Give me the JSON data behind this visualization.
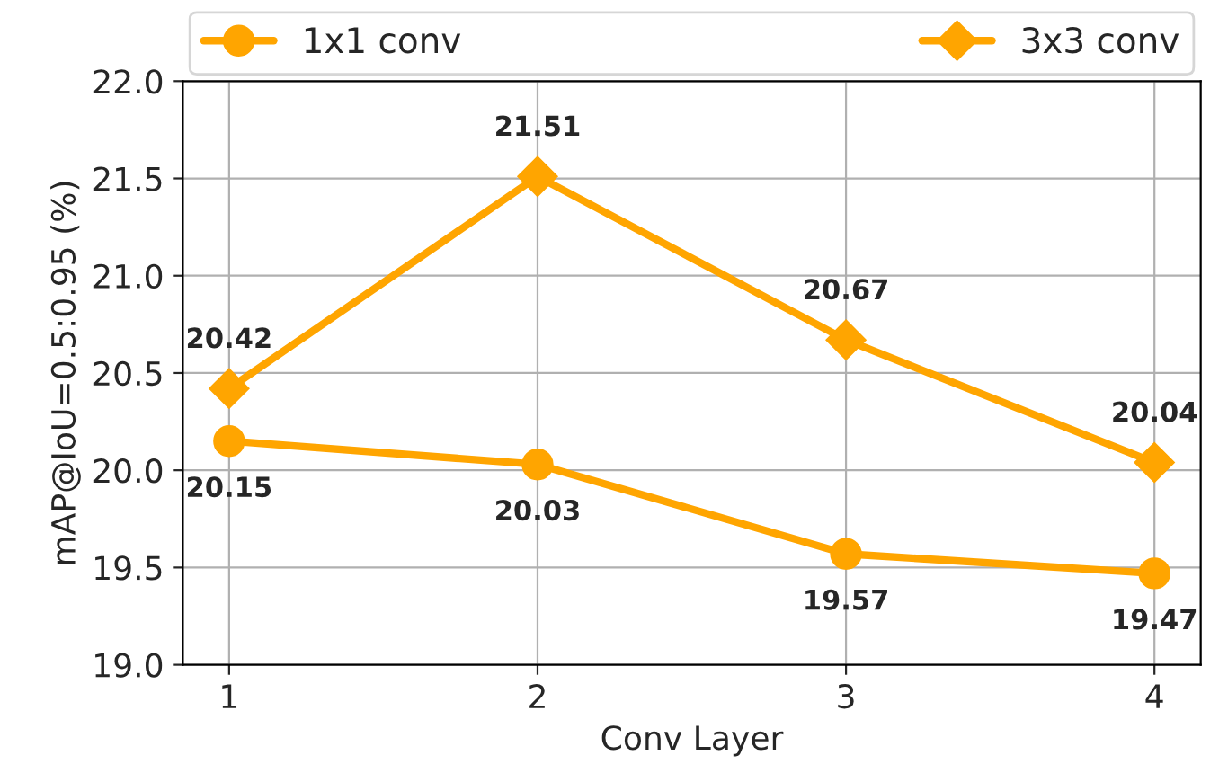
{
  "chart_data": {
    "type": "line",
    "xlabel": "Conv Layer",
    "ylabel": "mAP@IoU=0.5:0.95 (%)",
    "categories": [
      "1",
      "2",
      "3",
      "4"
    ],
    "series": [
      {
        "name": "1x1 conv",
        "color": "#ffa500",
        "marker": "circle",
        "values": [
          20.15,
          20.03,
          19.57,
          19.47
        ]
      },
      {
        "name": "3x3 conv",
        "color": "#ffa500",
        "marker": "diamond",
        "values": [
          20.42,
          21.51,
          20.67,
          20.04
        ]
      }
    ],
    "ylim": [
      19.0,
      22.0
    ],
    "yticks": [
      {
        "value": 19,
        "label": "19.0"
      },
      19.5,
      {
        "value": 20,
        "label": "20.0"
      },
      20.5,
      {
        "value": 21,
        "label": "21.0"
      },
      21.5,
      {
        "value": 22,
        "label": "22.0"
      }
    ],
    "grid": true,
    "legend": "top",
    "data_labels": true,
    "line_style": "solid"
  }
}
